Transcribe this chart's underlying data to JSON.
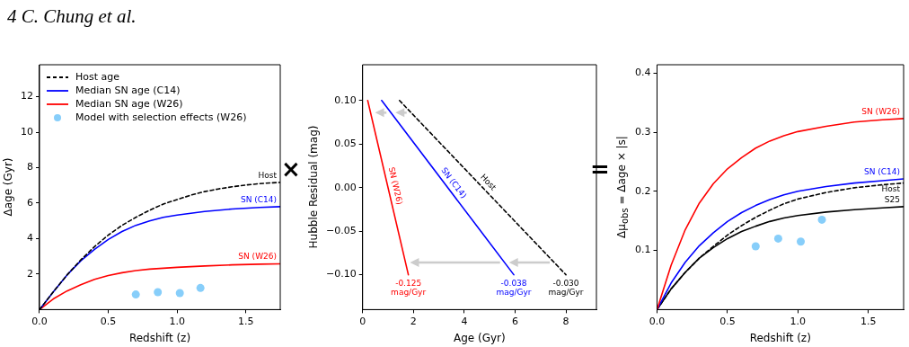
{
  "chart_data": [
    {
      "type": "line",
      "xlabel": "Redshift (z)",
      "ylabel": "Δage (Gyr)",
      "xlim": [
        0,
        1.75
      ],
      "ylim": [
        0,
        13.8
      ],
      "xticks": [
        {
          "value": 0,
          "label": "0.0"
        },
        {
          "value": 0.5,
          "label": "0.5"
        },
        {
          "value": 1,
          "label": "1.0"
        },
        {
          "value": 1.5,
          "label": "1.5"
        }
      ],
      "yticks": [
        2,
        4,
        6,
        8,
        10,
        12
      ],
      "legend": "top left",
      "series": [
        {
          "name": "Host age",
          "color": "#000000",
          "line_style": "dashed",
          "x": [
            0,
            0.1,
            0.2,
            0.3,
            0.4,
            0.5,
            0.6,
            0.7,
            0.8,
            0.9,
            1.0,
            1.1,
            1.2,
            1.3,
            1.4,
            1.5,
            1.6,
            1.75
          ],
          "values": [
            0,
            1.0,
            1.95,
            2.8,
            3.55,
            4.2,
            4.75,
            5.2,
            5.6,
            5.95,
            6.2,
            6.45,
            6.65,
            6.8,
            6.92,
            7.02,
            7.1,
            7.17
          ]
        },
        {
          "name": "Median SN age (C14)",
          "color": "#0000ff",
          "x": [
            0,
            0.1,
            0.2,
            0.3,
            0.4,
            0.5,
            0.6,
            0.7,
            0.8,
            0.9,
            1.0,
            1.2,
            1.4,
            1.6,
            1.75
          ],
          "values": [
            0,
            1.0,
            1.95,
            2.75,
            3.4,
            3.95,
            4.4,
            4.75,
            5.0,
            5.2,
            5.33,
            5.53,
            5.67,
            5.76,
            5.8
          ]
        },
        {
          "name": "Median SN age (W26)",
          "color": "#ff0000",
          "x": [
            0,
            0.1,
            0.2,
            0.3,
            0.4,
            0.5,
            0.6,
            0.7,
            0.8,
            1.0,
            1.2,
            1.4,
            1.6,
            1.75
          ],
          "values": [
            0,
            0.6,
            1.05,
            1.4,
            1.7,
            1.92,
            2.08,
            2.2,
            2.28,
            2.38,
            2.46,
            2.52,
            2.56,
            2.58
          ]
        },
        {
          "name": "Model with selection effects (W26)",
          "type": "scatter",
          "marker": "circle",
          "color": "#87cefa",
          "x": [
            0.7,
            0.86,
            1.02,
            1.17
          ],
          "values": [
            0.85,
            0.98,
            0.93,
            1.22
          ]
        }
      ],
      "annotations": [
        "4 C. Chung et al.",
        "Host",
        "SN (C14)",
        "SN (W26)"
      ]
    },
    {
      "type": "line",
      "xlabel": "Age (Gyr)",
      "ylabel": "Hubble Residual (mag)",
      "xlim": [
        0,
        9.2
      ],
      "ylim": [
        -0.14,
        0.141
      ],
      "xticks": [
        0,
        2,
        4,
        6,
        8
      ],
      "yticks": [
        {
          "value": -0.1,
          "label": "−0.10"
        },
        {
          "value": -0.05,
          "label": "−0.05"
        },
        {
          "value": 0,
          "label": "0.00"
        },
        {
          "value": 0.05,
          "label": "0.05"
        },
        {
          "value": 0.1,
          "label": "0.10"
        }
      ],
      "series": [
        {
          "name": "Host",
          "color": "#000000",
          "line_style": "dashed",
          "x": [
            1.45,
            8.0
          ],
          "values": [
            0.1,
            -0.1
          ]
        },
        {
          "name": "SN (C14)",
          "color": "#0000ff",
          "x": [
            0.75,
            5.95
          ],
          "values": [
            0.1,
            -0.1
          ]
        },
        {
          "name": "SN (W26)",
          "color": "#ff0000",
          "x": [
            0.2,
            1.8
          ],
          "values": [
            0.1,
            -0.1
          ]
        }
      ],
      "annotations": [
        "×",
        "-0.030 mag/Gyr",
        "-0.038 mag/Gyr",
        "-0.125 mag/Gyr"
      ]
    },
    {
      "type": "line",
      "xlabel": "Redshift (z)",
      "ylabel": "Δμ$_{obs}$ = Δage × |s|",
      "xlim": [
        0,
        1.75
      ],
      "ylim": [
        0,
        0.414
      ],
      "xticks": [
        {
          "value": 0,
          "label": "0.0"
        },
        {
          "value": 0.5,
          "label": "0.5"
        },
        {
          "value": 1,
          "label": "1.0"
        },
        {
          "value": 1.5,
          "label": "1.5"
        }
      ],
      "yticks": [
        0.1,
        0.2,
        0.3,
        0.4
      ],
      "series": [
        {
          "name": "SN (W26)",
          "color": "#ff0000",
          "x": [
            0,
            0.1,
            0.2,
            0.3,
            0.4,
            0.5,
            0.6,
            0.7,
            0.8,
            0.9,
            1.0,
            1.2,
            1.4,
            1.6,
            1.75
          ],
          "values": [
            0,
            0.075,
            0.135,
            0.18,
            0.213,
            0.238,
            0.257,
            0.273,
            0.285,
            0.294,
            0.301,
            0.31,
            0.317,
            0.321,
            0.323
          ]
        },
        {
          "name": "SN (C14)",
          "color": "#0000ff",
          "x": [
            0,
            0.1,
            0.2,
            0.3,
            0.4,
            0.5,
            0.6,
            0.7,
            0.8,
            0.9,
            1.0,
            1.2,
            1.4,
            1.6,
            1.75
          ],
          "values": [
            0,
            0.045,
            0.08,
            0.108,
            0.13,
            0.149,
            0.164,
            0.176,
            0.186,
            0.194,
            0.2,
            0.208,
            0.214,
            0.218,
            0.221
          ]
        },
        {
          "name": "Host",
          "color": "#000000",
          "line_style": "dashed",
          "x": [
            0,
            0.1,
            0.2,
            0.3,
            0.4,
            0.5,
            0.6,
            0.7,
            0.8,
            0.9,
            1.0,
            1.2,
            1.4,
            1.6,
            1.75
          ],
          "values": [
            0,
            0.035,
            0.063,
            0.087,
            0.107,
            0.126,
            0.142,
            0.156,
            0.168,
            0.179,
            0.187,
            0.198,
            0.206,
            0.211,
            0.214
          ]
        },
        {
          "name": "S25",
          "color": "#000000",
          "x": [
            0,
            0.1,
            0.2,
            0.3,
            0.4,
            0.5,
            0.6,
            0.7,
            0.8,
            0.9,
            1.0,
            1.2,
            1.4,
            1.6,
            1.75
          ],
          "values": [
            0,
            0.035,
            0.063,
            0.087,
            0.105,
            0.12,
            0.132,
            0.141,
            0.149,
            0.155,
            0.159,
            0.165,
            0.169,
            0.172,
            0.174
          ]
        },
        {
          "type": "scatter",
          "marker": "circle",
          "color": "#87cefa",
          "x": [
            0.7,
            0.86,
            1.02,
            1.17
          ],
          "values": [
            0.107,
            0.12,
            0.115,
            0.152
          ]
        }
      ],
      "annotations": [
        "="
      ]
    }
  ]
}
